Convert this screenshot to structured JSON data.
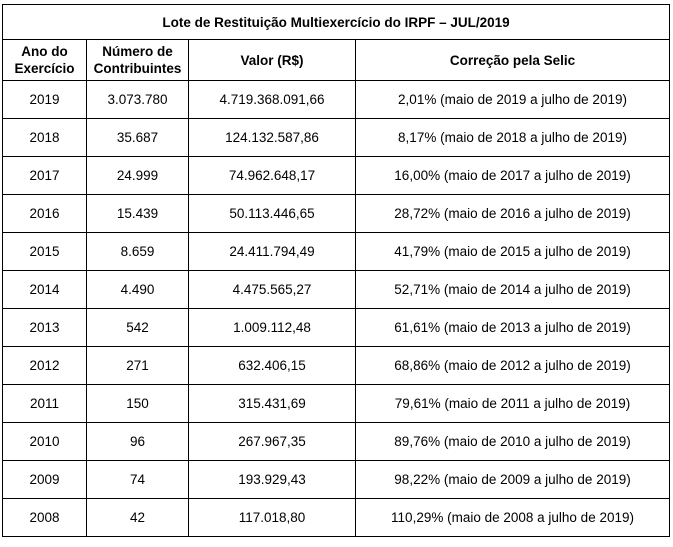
{
  "table": {
    "title": "Lote de Restituição Multiexercício do IRPF – JUL/2019",
    "headers": {
      "ano_line1": "Ano do",
      "ano_line2": "Exercício",
      "numero_line1": "Número de",
      "numero_line2": "Contribuintes",
      "valor": "Valor (R$)",
      "correcao": "Correção pela Selic"
    },
    "rows": [
      {
        "ano": "2019",
        "contribuintes": "3.073.780",
        "valor": "4.719.368.091,66",
        "correcao": "2,01% (maio de 2019 a julho de 2019)"
      },
      {
        "ano": "2018",
        "contribuintes": "35.687",
        "valor": "124.132.587,86",
        "correcao": "8,17% (maio de 2018 a julho de 2019)"
      },
      {
        "ano": "2017",
        "contribuintes": "24.999",
        "valor": "74.962.648,17",
        "correcao": "16,00% (maio de 2017 a  julho de 2019)"
      },
      {
        "ano": "2016",
        "contribuintes": "15.439",
        "valor": "50.113.446,65",
        "correcao": "28,72% (maio de 2016 a julho  de 2019)"
      },
      {
        "ano": "2015",
        "contribuintes": "8.659",
        "valor": "24.411.794,49",
        "correcao": "41,79% (maio de 2015 a  julho  de 2019)"
      },
      {
        "ano": "2014",
        "contribuintes": "4.490",
        "valor": "4.475.565,27",
        "correcao": "52,71% (maio de 2014 a julho de 2019)"
      },
      {
        "ano": "2013",
        "contribuintes": "542",
        "valor": "1.009.112,48",
        "correcao": "61,61% (maio de 2013 a julho de 2019)"
      },
      {
        "ano": "2012",
        "contribuintes": "271",
        "valor": "632.406,15",
        "correcao": "68,86% (maio de 2012 a julho de 2019)"
      },
      {
        "ano": "2011",
        "contribuintes": "150",
        "valor": "315.431,69",
        "correcao": "79,61% (maio de 2011 a  julho de 2019)"
      },
      {
        "ano": "2010",
        "contribuintes": "96",
        "valor": "267.967,35",
        "correcao": "89,76% (maio de 2010 a julho de 2019)"
      },
      {
        "ano": "2009",
        "contribuintes": "74",
        "valor": "193.929,43",
        "correcao": "98,22% (maio de 2009 a  julho de 2019)"
      },
      {
        "ano": "2008",
        "contribuintes": "42",
        "valor": "117.018,80",
        "correcao": "110,29% (maio de 2008 a  julho  de 2019)"
      }
    ]
  }
}
